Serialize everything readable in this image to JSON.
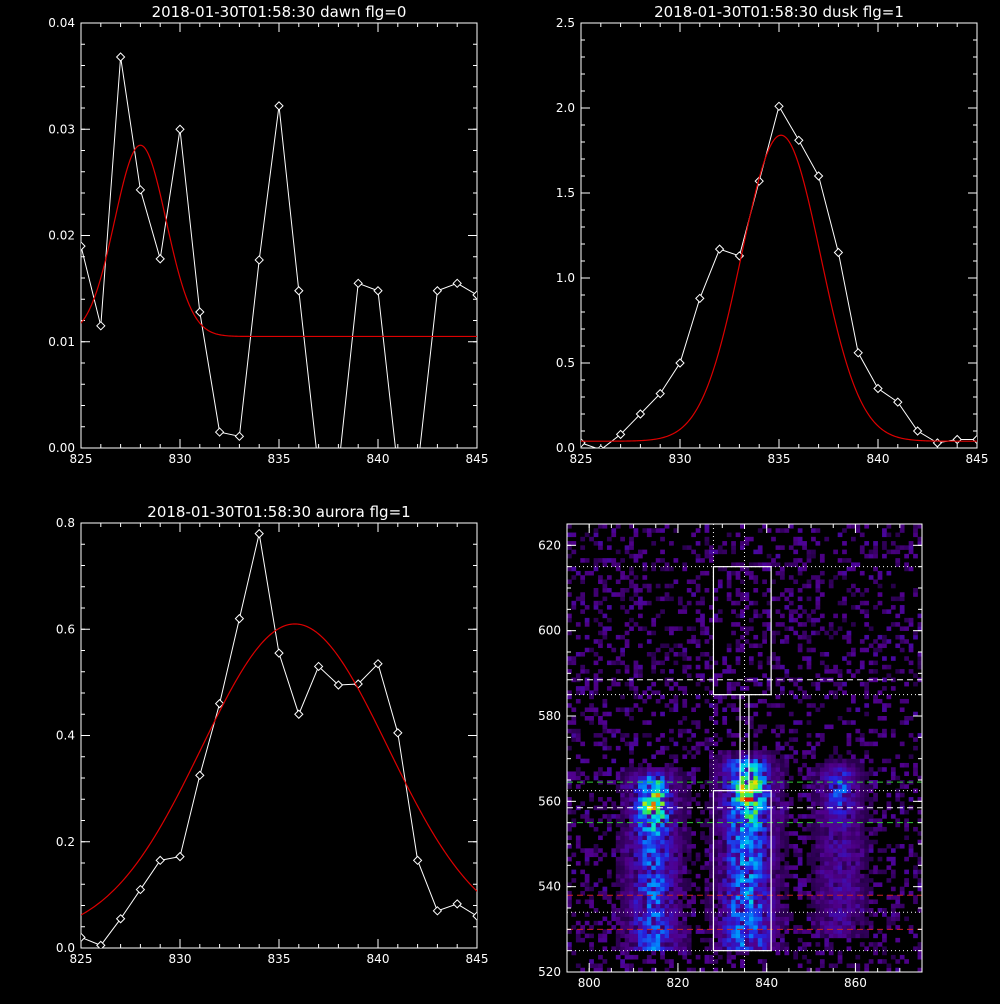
{
  "colors": {
    "background": "#000000",
    "foreground": "#ffffff",
    "fit": "#dd0000",
    "green_line": "#33cc33",
    "red_line": "#cc2222"
  },
  "chart_data": [
    {
      "type": "line",
      "title": "2018-01-30T01:58:30 dawn flg=0",
      "xlabel": "",
      "ylabel": "",
      "xlim": [
        825,
        845
      ],
      "ylim": [
        0,
        0.04
      ],
      "xticks": [
        825,
        830,
        835,
        840,
        845
      ],
      "xtick_labels": [
        "825",
        "830",
        "835",
        "840",
        "845"
      ],
      "yticks": [
        0,
        0.01,
        0.02,
        0.03,
        0.04
      ],
      "ytick_labels": [
        "0.00",
        "0.01",
        "0.02",
        "0.03",
        "0.04"
      ],
      "series": [
        {
          "kind": "data",
          "color": "#ffffff",
          "marker": "diamond",
          "x": [
            825,
            826,
            827,
            828,
            829,
            830,
            831,
            832,
            833,
            834,
            835,
            836,
            837,
            838,
            839,
            840,
            841,
            842,
            843,
            844,
            845
          ],
          "y": [
            0.019,
            0.0115,
            0.0368,
            0.0243,
            0.0178,
            0.03,
            0.0128,
            0.0015,
            0.0011,
            0.0177,
            0.0322,
            0.0148,
            -0.002,
            -0.002,
            0.0155,
            0.0148,
            -0.002,
            -0.002,
            0.0148,
            0.0155,
            0.0144
          ]
        },
        {
          "kind": "fit",
          "color": "#dd0000",
          "model": "gaussian",
          "amplitude": 0.018,
          "center": 828.0,
          "sigma": 1.3,
          "offset": 0.0105
        }
      ]
    },
    {
      "type": "line",
      "title": "2018-01-30T01:58:30 dusk flg=1",
      "xlabel": "",
      "ylabel": "",
      "xlim": [
        825,
        845
      ],
      "ylim": [
        0,
        2.5
      ],
      "xticks": [
        825,
        830,
        835,
        840,
        845
      ],
      "xtick_labels": [
        "825",
        "830",
        "835",
        "840",
        "845"
      ],
      "yticks": [
        0,
        0.5,
        1.0,
        1.5,
        2.0,
        2.5
      ],
      "ytick_labels": [
        "0.0",
        "0.5",
        "1.0",
        "1.5",
        "2.0",
        "2.5"
      ],
      "series": [
        {
          "kind": "data",
          "color": "#ffffff",
          "marker": "diamond",
          "x": [
            825,
            826,
            827,
            828,
            829,
            830,
            831,
            832,
            833,
            834,
            835,
            836,
            837,
            838,
            839,
            840,
            841,
            842,
            843,
            844,
            845
          ],
          "y": [
            0.03,
            -0.01,
            0.08,
            0.2,
            0.32,
            0.5,
            0.88,
            1.17,
            1.13,
            1.57,
            2.01,
            1.81,
            1.6,
            1.15,
            0.56,
            0.35,
            0.27,
            0.1,
            0.03,
            0.05,
            0.05
          ]
        },
        {
          "kind": "fit",
          "color": "#dd0000",
          "model": "gaussian",
          "amplitude": 1.8,
          "center": 835.1,
          "sigma": 2.0,
          "offset": 0.04
        }
      ]
    },
    {
      "type": "line",
      "title": "2018-01-30T01:58:30 aurora flg=1",
      "xlabel": "",
      "ylabel": "",
      "xlim": [
        825,
        845
      ],
      "ylim": [
        0,
        0.8
      ],
      "xticks": [
        825,
        830,
        835,
        840,
        845
      ],
      "xtick_labels": [
        "825",
        "830",
        "835",
        "840",
        "845"
      ],
      "yticks": [
        0,
        0.2,
        0.4,
        0.6,
        0.8
      ],
      "ytick_labels": [
        "0.0",
        "0.2",
        "0.4",
        "0.6",
        "0.8"
      ],
      "series": [
        {
          "kind": "data",
          "color": "#ffffff",
          "marker": "diamond",
          "x": [
            825,
            826,
            827,
            828,
            829,
            830,
            831,
            832,
            833,
            834,
            835,
            836,
            837,
            838,
            839,
            840,
            841,
            842,
            843,
            844,
            845
          ],
          "y": [
            0.02,
            0.005,
            0.055,
            0.11,
            0.165,
            0.172,
            0.325,
            0.46,
            0.62,
            0.78,
            0.555,
            0.44,
            0.53,
            0.495,
            0.497,
            0.535,
            0.405,
            0.165,
            0.07,
            0.083,
            0.06
          ]
        },
        {
          "kind": "fit",
          "color": "#dd0000",
          "model": "gaussian",
          "amplitude": 0.59,
          "center": 835.8,
          "sigma": 4.7,
          "offset": 0.02
        }
      ]
    },
    {
      "type": "heatmap",
      "title": "",
      "xlabel": "",
      "ylabel": "",
      "xlim": [
        795,
        875
      ],
      "ylim": [
        520,
        625
      ],
      "xticks": [
        800,
        820,
        840,
        860
      ],
      "xtick_labels": [
        "800",
        "820",
        "840",
        "860"
      ],
      "yticks": [
        520,
        540,
        560,
        580,
        600,
        620
      ],
      "ytick_labels": [
        "520",
        "540",
        "560",
        "580",
        "600",
        "620"
      ],
      "colormap": "rainbow",
      "emission_columns": [
        {
          "x_center": 814,
          "x_halfwidth": 3.5,
          "y_from": 525,
          "y_to": 568,
          "peak_y": 559,
          "peak_x": 814,
          "peak": 0.85
        },
        {
          "x_center": 835,
          "x_halfwidth": 3.8,
          "y_from": 525,
          "y_to": 572,
          "peak_y": 561,
          "peak_x": 836,
          "peak": 1.0
        },
        {
          "x_center": 856,
          "x_halfwidth": 3.5,
          "y_from": 528,
          "y_to": 570,
          "peak_y": 562,
          "peak_x": 856,
          "peak": 0.35
        }
      ],
      "boxes": [
        {
          "x": [
            828,
            841
          ],
          "y": [
            525,
            562.5
          ]
        },
        {
          "x": [
            828,
            841
          ],
          "y": [
            585,
            615
          ]
        },
        {
          "x": [
            834,
            836
          ],
          "y": [
            562.5,
            585
          ]
        }
      ],
      "horizontal_lines": [
        {
          "y": 615,
          "color": "#ffffff",
          "style": "dotted"
        },
        {
          "y": 588.5,
          "color": "#ffffff",
          "style": "dashed"
        },
        {
          "y": 585,
          "color": "#ffffff",
          "style": "dotted"
        },
        {
          "y": 564.5,
          "color": "#33cc33",
          "style": "dashed"
        },
        {
          "y": 562.5,
          "color": "#ffffff",
          "style": "dotted"
        },
        {
          "y": 558.5,
          "color": "#ffffff",
          "style": "dashed"
        },
        {
          "y": 555,
          "color": "#33cc33",
          "style": "dashed"
        },
        {
          "y": 538,
          "color": "#cc2222",
          "style": "dashed"
        },
        {
          "y": 534,
          "color": "#ffffff",
          "style": "dotted"
        },
        {
          "y": 530,
          "color": "#cc2222",
          "style": "dashed"
        },
        {
          "y": 525,
          "color": "#ffffff",
          "style": "dotted"
        }
      ],
      "vertical_lines": [
        {
          "x": 828,
          "color": "#ffffff",
          "style": "dotted"
        },
        {
          "x": 835,
          "color": "#ffffff",
          "style": "dotted"
        }
      ]
    }
  ]
}
